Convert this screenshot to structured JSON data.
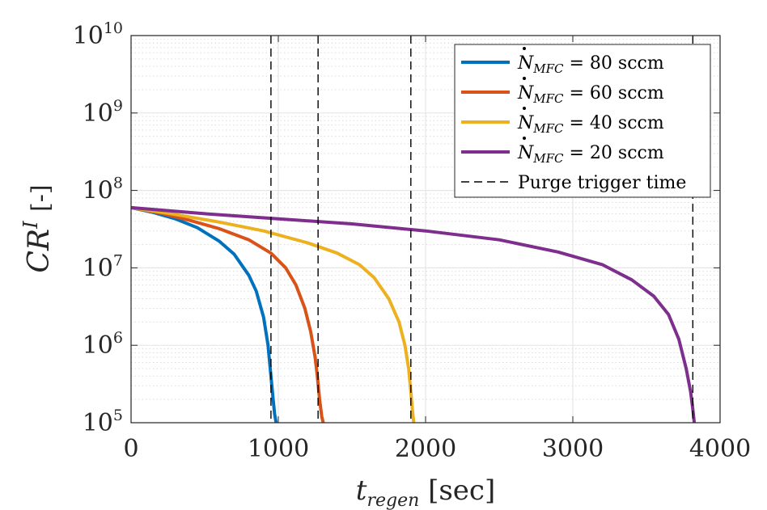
{
  "chart_data": {
    "type": "line",
    "title": "",
    "xlabel": {
      "main": "t",
      "sub": "regen",
      "unit": "[sec]"
    },
    "ylabel": {
      "main": "CR",
      "sup": "I",
      "unit": "[-]"
    },
    "x_range": [
      0,
      4000
    ],
    "y_range_log10": [
      5,
      10
    ],
    "yscale": "log",
    "grid": true,
    "x_ticks": [
      {
        "value": 0,
        "label": "0"
      },
      {
        "value": 1000,
        "label": "1000"
      },
      {
        "value": 2000,
        "label": "2000"
      },
      {
        "value": 3000,
        "label": "3000"
      },
      {
        "value": 4000,
        "label": "4000"
      }
    ],
    "y_ticks": [
      {
        "exp": 5,
        "base": "10",
        "sup": "5"
      },
      {
        "exp": 6,
        "base": "10",
        "sup": "6"
      },
      {
        "exp": 7,
        "base": "10",
        "sup": "7"
      },
      {
        "exp": 8,
        "base": "10",
        "sup": "8"
      },
      {
        "exp": 9,
        "base": "10",
        "sup": "9"
      },
      {
        "exp": 10,
        "base": "10",
        "sup": "10"
      }
    ],
    "legend_position": "top-right",
    "series": [
      {
        "name": "N_MFC = 80 sccm",
        "label_sym": "N",
        "label_sub": "MFC",
        "label_rest": " = 80 sccm",
        "color": "#0072BD",
        "x": [
          0,
          150,
          300,
          450,
          600,
          700,
          800,
          850,
          900,
          930,
          945,
          960,
          975,
          985
        ],
        "y": [
          60000000.0,
          52000000.0,
          43000000.0,
          33000000.0,
          22000000.0,
          15000000.0,
          8000000.0,
          5000000.0,
          2300000.0,
          1000000.0,
          500000.0,
          250000.0,
          130000.0,
          100000.0
        ]
      },
      {
        "name": "N_MFC = 60 sccm",
        "label_sym": "N",
        "label_sub": "MFC",
        "label_rest": " = 60 sccm",
        "color": "#D95319",
        "x": [
          0,
          200,
          400,
          600,
          800,
          950,
          1050,
          1120,
          1180,
          1220,
          1250,
          1265,
          1280,
          1295,
          1305
        ],
        "y": [
          60000000.0,
          51000000.0,
          41000000.0,
          32000000.0,
          23000000.0,
          15500000.0,
          10000000.0,
          6000000.0,
          3000000.0,
          1500000.0,
          700000.0,
          400000.0,
          200000.0,
          120000.0,
          100000.0
        ]
      },
      {
        "name": "N_MFC = 40 sccm",
        "label_sym": "N",
        "label_sub": "MFC",
        "label_rest": " = 40 sccm",
        "color": "#EDB120",
        "x": [
          0,
          300,
          600,
          900,
          1200,
          1400,
          1550,
          1650,
          1750,
          1820,
          1860,
          1885,
          1900,
          1910,
          1920
        ],
        "y": [
          60000000.0,
          49000000.0,
          39000000.0,
          30000000.0,
          21000000.0,
          15500000.0,
          11000000.0,
          7500000.0,
          4000000.0,
          2000000.0,
          1000000.0,
          500000.0,
          250000.0,
          150000.0,
          100000.0
        ]
      },
      {
        "name": "N_MFC = 20 sccm",
        "label_sym": "N",
        "label_sub": "MFC",
        "label_rest": " = 20 sccm",
        "color": "#7E2F8E",
        "x": [
          0,
          500,
          1000,
          1500,
          2000,
          2500,
          2900,
          3200,
          3400,
          3550,
          3650,
          3720,
          3770,
          3800,
          3815,
          3825
        ],
        "y": [
          60000000.0,
          50000000.0,
          43000000.0,
          37000000.0,
          30000000.0,
          23000000.0,
          16000000.0,
          11000000.0,
          7000000.0,
          4300000.0,
          2500000.0,
          1200000.0,
          500000.0,
          250000.0,
          150000.0,
          100000.0
        ]
      }
    ],
    "vlines": {
      "name": "Purge trigger time",
      "label": "Purge trigger time",
      "color": "#000000",
      "x": [
        950,
        1270,
        1900,
        3815
      ]
    }
  }
}
